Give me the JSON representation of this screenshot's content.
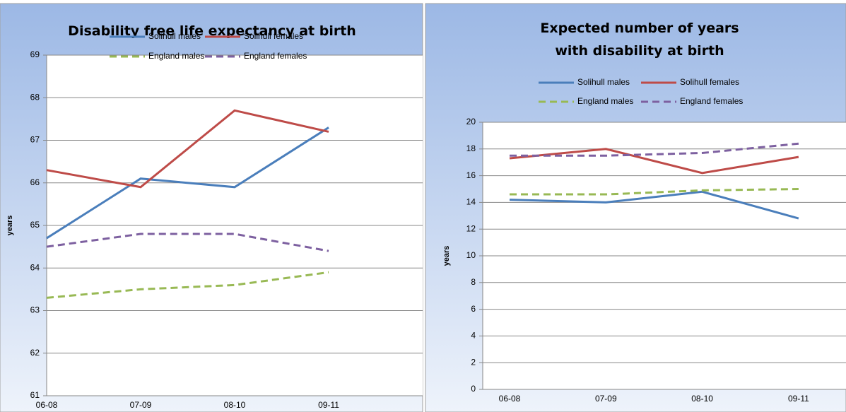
{
  "chart_data": [
    {
      "type": "line",
      "title": "Disability free life expectancy at birth",
      "y_label": "years",
      "categories": [
        "06-08",
        "07-09",
        "08-10",
        "09-11"
      ],
      "series": [
        {
          "name": "Solihull males",
          "color": "#4a7ebb",
          "dashed": false,
          "values": [
            64.7,
            66.1,
            65.9,
            67.3
          ]
        },
        {
          "name": "Solihull females",
          "color": "#be4b48",
          "dashed": false,
          "values": [
            66.3,
            65.9,
            67.7,
            67.2
          ]
        },
        {
          "name": "England males",
          "color": "#98b954",
          "dashed": true,
          "values": [
            63.3,
            63.5,
            63.6,
            63.9
          ]
        },
        {
          "name": "England females",
          "color": "#7d60a0",
          "dashed": true,
          "values": [
            64.5,
            64.8,
            64.8,
            64.4
          ]
        }
      ],
      "ylim": [
        61,
        69
      ],
      "yticks": [
        61,
        62,
        63,
        64,
        65,
        66,
        67,
        68,
        69
      ],
      "grid": true
    },
    {
      "type": "line",
      "title": "Expected number of years with disability at birth",
      "y_label": "years",
      "categories": [
        "06-08",
        "07-09",
        "08-10",
        "09-11"
      ],
      "series": [
        {
          "name": "Solihull males",
          "color": "#4a7ebb",
          "dashed": false,
          "values": [
            14.2,
            14.0,
            14.8,
            12.8
          ]
        },
        {
          "name": "Solihull females",
          "color": "#be4b48",
          "dashed": false,
          "values": [
            17.3,
            18.0,
            16.2,
            17.4
          ]
        },
        {
          "name": "England males",
          "color": "#98b954",
          "dashed": true,
          "values": [
            14.6,
            14.6,
            14.9,
            15.0
          ]
        },
        {
          "name": "England females",
          "color": "#7d60a0",
          "dashed": true,
          "values": [
            17.5,
            17.5,
            17.7,
            18.4
          ]
        }
      ],
      "ylim": [
        0,
        20
      ],
      "yticks": [
        0,
        2,
        4,
        6,
        8,
        10,
        12,
        14,
        16,
        18,
        20
      ],
      "grid": true
    }
  ]
}
